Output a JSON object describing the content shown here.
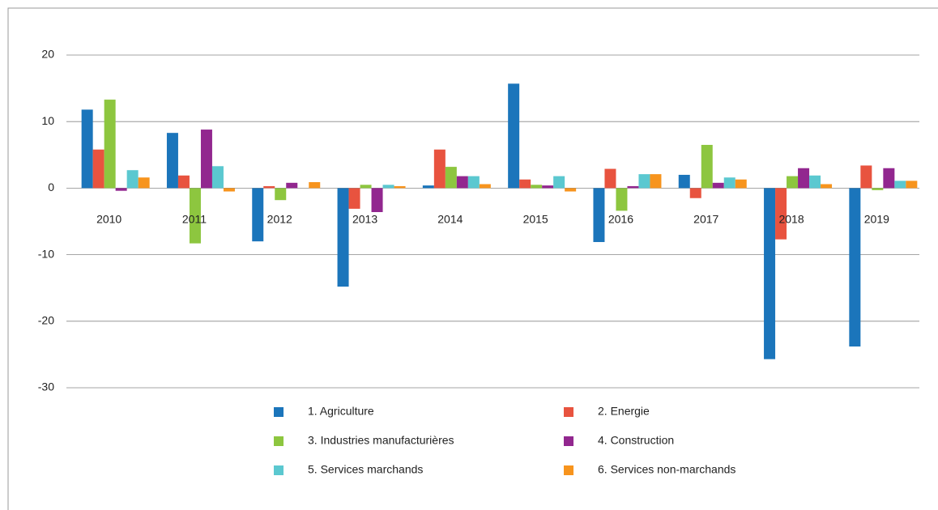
{
  "chart_data": {
    "type": "bar",
    "categories": [
      "2010",
      "2011",
      "2012",
      "2013",
      "2014",
      "2015",
      "2016",
      "2017",
      "2018",
      "2019"
    ],
    "series": [
      {
        "name": "1. Agriculture",
        "color": "#1b75bb",
        "values": [
          11.8,
          8.3,
          -8.0,
          -14.8,
          0.4,
          15.7,
          -8.1,
          2.0,
          -25.7,
          -23.8
        ]
      },
      {
        "name": "2. Energie",
        "color": "#e8533f",
        "values": [
          5.8,
          1.9,
          0.3,
          -3.1,
          5.8,
          1.3,
          2.9,
          -1.5,
          -7.7,
          3.4
        ]
      },
      {
        "name": "3. Industries manufacturières",
        "color": "#8dc63f",
        "values": [
          13.3,
          -8.3,
          -1.8,
          0.5,
          3.2,
          0.5,
          -3.4,
          6.5,
          1.8,
          -0.3
        ]
      },
      {
        "name": "4. Construction",
        "color": "#92278f",
        "values": [
          -0.4,
          8.8,
          0.8,
          -3.6,
          1.8,
          0.4,
          0.3,
          0.8,
          3.0,
          3.0
        ]
      },
      {
        "name": "5. Services marchands",
        "color": "#5bc8d0",
        "values": [
          2.7,
          3.3,
          0,
          0.5,
          1.8,
          1.8,
          2.1,
          1.6,
          1.9,
          1.1
        ]
      },
      {
        "name": "6. Services non-marchands",
        "color": "#f7941d",
        "values": [
          1.6,
          -0.5,
          0.9,
          0.3,
          0.6,
          -0.5,
          2.1,
          1.3,
          0.6,
          1.1
        ]
      }
    ],
    "ylim": [
      -30,
      20
    ],
    "yticks": [
      -30,
      -20,
      -10,
      0,
      10,
      20
    ],
    "grid": true,
    "legend": "bottom"
  }
}
